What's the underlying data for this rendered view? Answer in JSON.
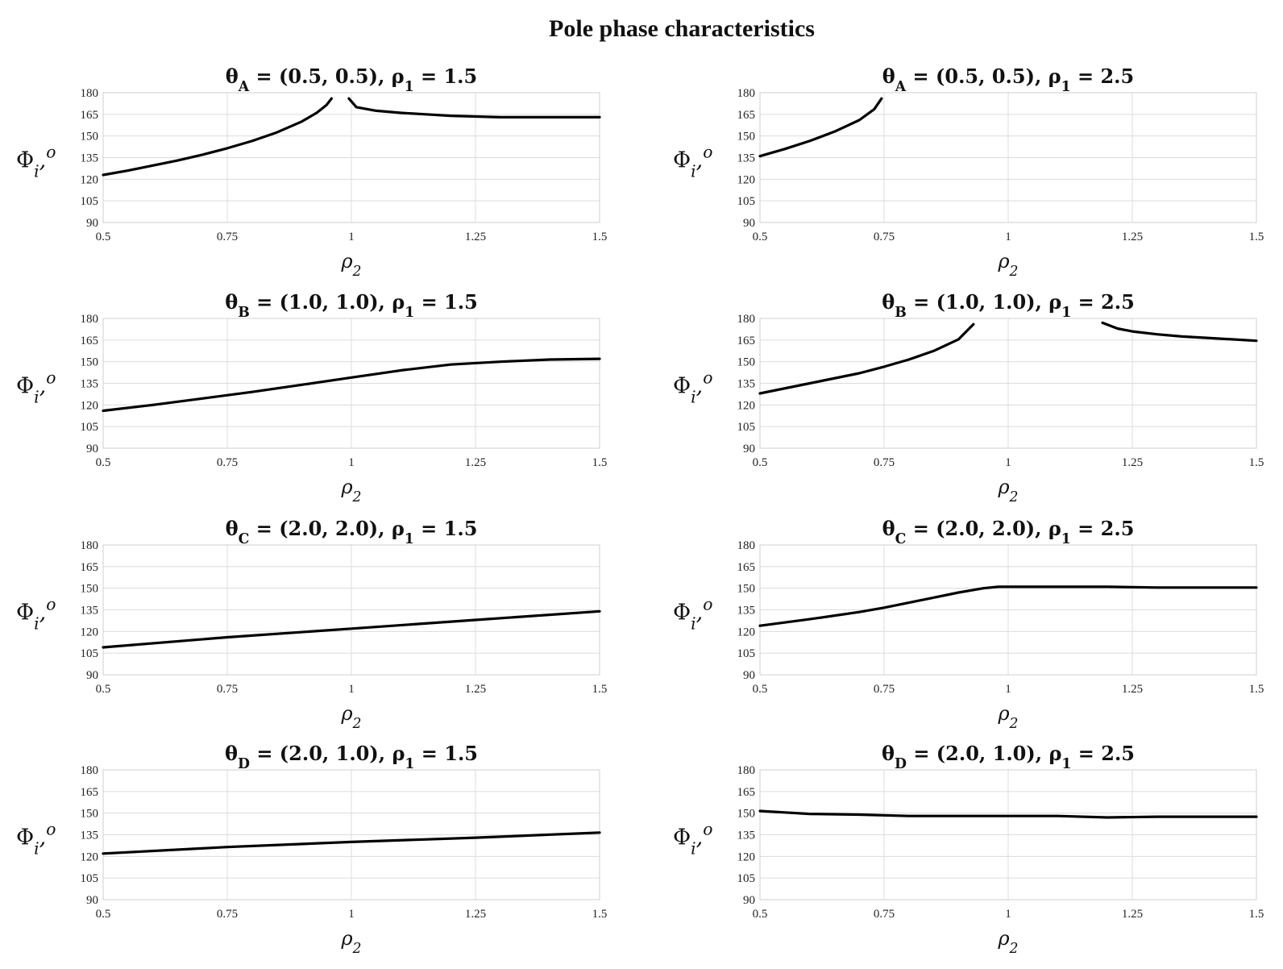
{
  "figure": {
    "title": "Pole phase characteristics"
  },
  "chart_data": [
    {
      "type": "line",
      "title": "θ_A = (0.5, 0.5), ρ_1 = 1.5",
      "xlabel": "ρ_2",
      "ylabel": "Φ_i, o",
      "xlim": [
        0.5,
        1.5
      ],
      "ylim": [
        90,
        180
      ],
      "xticks": [
        "0.5",
        "0.75",
        "1",
        "1.25",
        "1.5"
      ],
      "yticks": [
        "90",
        "105",
        "120",
        "135",
        "150",
        "165",
        "180"
      ],
      "grid": true,
      "segments": [
        {
          "x": [
            0.5,
            0.55,
            0.6,
            0.65,
            0.7,
            0.75,
            0.8,
            0.85,
            0.9,
            0.93,
            0.95,
            0.96
          ],
          "y": [
            123,
            126,
            129.5,
            133,
            137,
            141.5,
            146.5,
            152.5,
            160,
            166,
            171.5,
            176
          ]
        },
        {
          "x": [
            0.995,
            1.01,
            1.05,
            1.1,
            1.15,
            1.2,
            1.25,
            1.3,
            1.4,
            1.5
          ],
          "y": [
            176,
            170,
            167.5,
            166,
            165,
            164,
            163.5,
            163,
            163,
            163
          ]
        }
      ]
    },
    {
      "type": "line",
      "title": "θ_A = (0.5, 0.5), ρ_1 = 2.5",
      "xlabel": "ρ_2",
      "ylabel": "Φ_i, o",
      "xlim": [
        0.5,
        1.5
      ],
      "ylim": [
        90,
        180
      ],
      "xticks": [
        "0.5",
        "0.75",
        "1",
        "1.25",
        "1.5"
      ],
      "yticks": [
        "90",
        "105",
        "120",
        "135",
        "150",
        "165",
        "180"
      ],
      "grid": true,
      "segments": [
        {
          "x": [
            0.5,
            0.55,
            0.6,
            0.65,
            0.7,
            0.73,
            0.745
          ],
          "y": [
            136,
            141,
            146.5,
            153,
            161,
            168.5,
            176
          ]
        }
      ]
    },
    {
      "type": "line",
      "title": "θ_B = (1.0, 1.0), ρ_1 = 1.5",
      "xlabel": "ρ_2",
      "ylabel": "Φ_i, o",
      "xlim": [
        0.5,
        1.5
      ],
      "ylim": [
        90,
        180
      ],
      "xticks": [
        "0.5",
        "0.75",
        "1",
        "1.25",
        "1.5"
      ],
      "yticks": [
        "90",
        "105",
        "120",
        "135",
        "150",
        "165",
        "180"
      ],
      "grid": true,
      "segments": [
        {
          "x": [
            0.5,
            0.6,
            0.7,
            0.8,
            0.9,
            1.0,
            1.1,
            1.2,
            1.3,
            1.4,
            1.5
          ],
          "y": [
            116,
            120,
            124.5,
            129,
            134,
            139,
            144,
            148,
            150,
            151.5,
            152
          ]
        }
      ]
    },
    {
      "type": "line",
      "title": "θ_B = (1.0, 1.0), ρ_1 = 2.5",
      "xlabel": "ρ_2",
      "ylabel": "Φ_i, o",
      "xlim": [
        0.5,
        1.5
      ],
      "ylim": [
        90,
        180
      ],
      "xticks": [
        "0.5",
        "0.75",
        "1",
        "1.25",
        "1.5"
      ],
      "yticks": [
        "90",
        "105",
        "120",
        "135",
        "150",
        "165",
        "180"
      ],
      "grid": true,
      "segments": [
        {
          "x": [
            0.5,
            0.6,
            0.7,
            0.75,
            0.8,
            0.85,
            0.9,
            0.93
          ],
          "y": [
            128,
            135,
            142,
            146.5,
            151.5,
            157.5,
            165.5,
            176
          ]
        },
        {
          "x": [
            1.19,
            1.22,
            1.25,
            1.3,
            1.35,
            1.4,
            1.45,
            1.5
          ],
          "y": [
            177,
            173,
            171,
            169,
            167.5,
            166.5,
            165.5,
            164.5
          ]
        }
      ]
    },
    {
      "type": "line",
      "title": "θ_C = (2.0, 2.0), ρ_1 = 1.5",
      "xlabel": "ρ_2",
      "ylabel": "Φ_i, o",
      "xlim": [
        0.5,
        1.5
      ],
      "ylim": [
        90,
        180
      ],
      "xticks": [
        "0.5",
        "0.75",
        "1",
        "1.25",
        "1.5"
      ],
      "yticks": [
        "90",
        "105",
        "120",
        "135",
        "150",
        "165",
        "180"
      ],
      "grid": true,
      "segments": [
        {
          "x": [
            0.5,
            0.75,
            1.0,
            1.25,
            1.5
          ],
          "y": [
            109,
            116,
            122,
            128,
            134
          ]
        }
      ]
    },
    {
      "type": "line",
      "title": "θ_C = (2.0, 2.0), ρ_1 = 2.5",
      "xlabel": "ρ_2",
      "ylabel": "Φ_i, o",
      "xlim": [
        0.5,
        1.5
      ],
      "ylim": [
        90,
        180
      ],
      "xticks": [
        "0.5",
        "0.75",
        "1",
        "1.25",
        "1.5"
      ],
      "yticks": [
        "90",
        "105",
        "120",
        "135",
        "150",
        "165",
        "180"
      ],
      "grid": true,
      "segments": [
        {
          "x": [
            0.5,
            0.6,
            0.7,
            0.75,
            0.8,
            0.85,
            0.9,
            0.95,
            0.98,
            1.0,
            1.1,
            1.2,
            1.3,
            1.4,
            1.5
          ],
          "y": [
            124,
            128.5,
            133.5,
            136.5,
            140,
            143.5,
            147,
            150,
            151,
            151,
            151,
            151,
            150.5,
            150.5,
            150.5
          ]
        }
      ]
    },
    {
      "type": "line",
      "title": "θ_D = (2.0, 1.0), ρ_1 = 1.5",
      "xlabel": "ρ_2",
      "ylabel": "Φ_i, o",
      "xlim": [
        0.5,
        1.5
      ],
      "ylim": [
        90,
        180
      ],
      "xticks": [
        "0.5",
        "0.75",
        "1",
        "1.25",
        "1.5"
      ],
      "yticks": [
        "90",
        "105",
        "120",
        "135",
        "150",
        "165",
        "180"
      ],
      "grid": true,
      "segments": [
        {
          "x": [
            0.5,
            0.75,
            1.0,
            1.25,
            1.5
          ],
          "y": [
            122,
            126.5,
            130,
            133,
            136.5
          ]
        }
      ]
    },
    {
      "type": "line",
      "title": "θ_D = (2.0, 1.0), ρ_1 = 2.5",
      "xlabel": "ρ_2",
      "ylabel": "Φ_i, o",
      "xlim": [
        0.5,
        1.5
      ],
      "ylim": [
        90,
        180
      ],
      "xticks": [
        "0.5",
        "0.75",
        "1",
        "1.25",
        "1.5"
      ],
      "yticks": [
        "90",
        "105",
        "120",
        "135",
        "150",
        "165",
        "180"
      ],
      "grid": true,
      "segments": [
        {
          "x": [
            0.5,
            0.55,
            0.6,
            0.7,
            0.8,
            0.9,
            1.0,
            1.1,
            1.2,
            1.3,
            1.4,
            1.5
          ],
          "y": [
            151.5,
            150.5,
            149.5,
            149,
            148,
            148,
            148,
            148,
            147,
            147.5,
            147.5,
            147.5
          ]
        }
      ]
    }
  ]
}
